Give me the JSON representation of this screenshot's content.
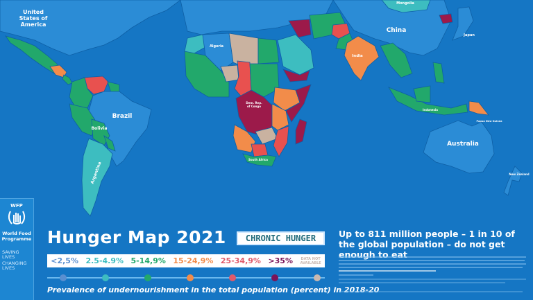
{
  "map": {
    "country_labels": {
      "usa": "United States of America",
      "usa_l1": "United",
      "usa_l2": "States of",
      "usa_l3": "America",
      "brazil": "Brazil",
      "bolivia": "Bolivia",
      "argentina": "Argentina",
      "algeria": "Algeria",
      "drc_l1": "Dem. Rep.",
      "drc_l2": "of Congo",
      "china": "China",
      "japan": "Japan",
      "mongolia": "Mongolia",
      "india": "India",
      "indonesia": "Indonesia",
      "png": "Papua New Guinea",
      "australia": "Australia",
      "new_zealand": "New Zealand",
      "south_africa": "South Africa"
    },
    "colors": {
      "ocean": "#1576c4",
      "not_assessed_land": "#2b8cd6",
      "lt_2_5": "#8ea6e0",
      "2_5_4_9": "#3dbdc0",
      "5_14_9": "#22a86b",
      "15_24_9": "#f28c4a",
      "25_34_9": "#e8514f",
      "gt_35": "#9c1a4a",
      "no_data": "#c9b2a0"
    }
  },
  "branding": {
    "logo_text": "WFP",
    "org_name_l1": "World Food",
    "org_name_l2": "Programme",
    "motto_l1": "SAVING",
    "motto_l2": "LIVES",
    "motto_l3": "CHANGING",
    "motto_l4": "LIVES"
  },
  "title": "Hunger Map 2021",
  "badge": "CHRONIC HUNGER",
  "legend": [
    {
      "label": "<2,5%",
      "color": "#5a8fd0"
    },
    {
      "label": "2.5-4.9%",
      "color": "#3dbdc0"
    },
    {
      "label": "5-14,9%",
      "color": "#22a86b"
    },
    {
      "label": "15-24,9%",
      "color": "#f28c4a"
    },
    {
      "label": "25-34,9%",
      "color": "#e05a6a"
    },
    {
      "label": ">35%",
      "color": "#7a1458"
    },
    {
      "label": "DATA NOT AVAILABLE",
      "label_l1": "DATA NOT",
      "label_l2": "AVAILABLE",
      "color": "#c9b8b0"
    }
  ],
  "subtitle": "Prevalence of undernourishment in the total population (percent) in 2018-20",
  "headline": "Up to 811 million people – 1 in 10 of the global population – do not get enough to eat"
}
